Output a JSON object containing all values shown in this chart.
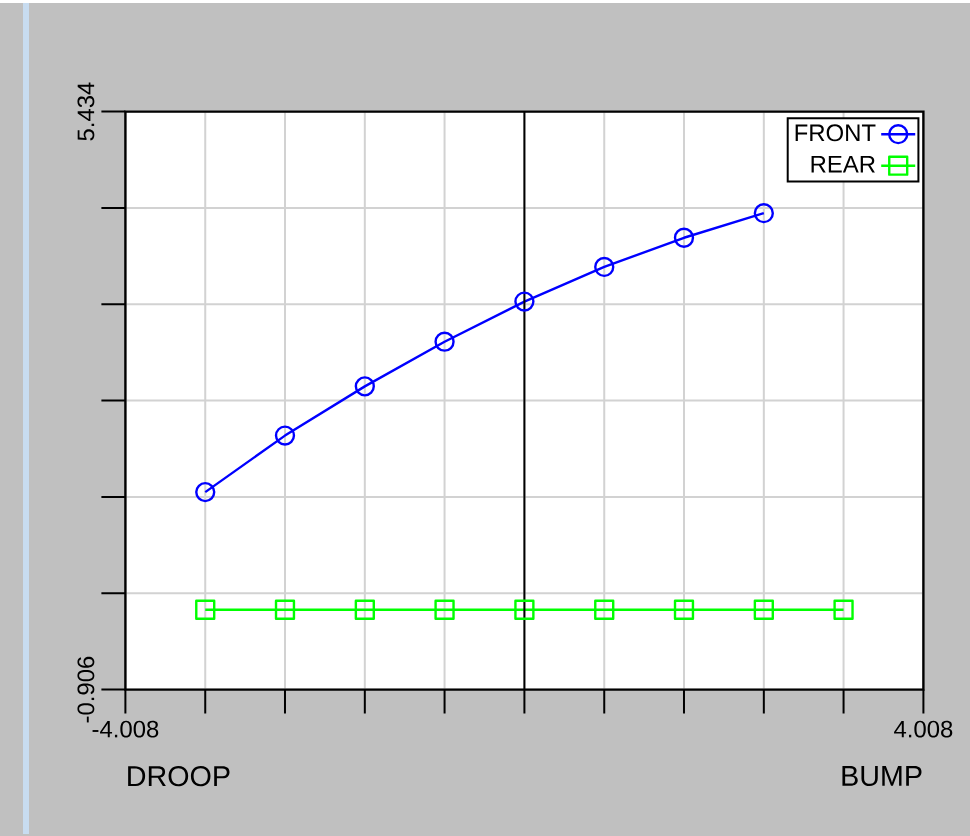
{
  "chart_data": {
    "type": "line",
    "annotations": [
      "DROOP",
      "BUMP"
    ],
    "x": [
      -3.206,
      -2.405,
      -1.603,
      -0.802,
      0,
      0.802,
      1.603,
      2.405,
      3.206
    ],
    "series": [
      {
        "name": "FRONT",
        "color": "#0000ff",
        "marker": "circle",
        "values": [
          1.26,
          1.88,
          2.42,
          2.91,
          3.35,
          3.73,
          4.05,
          4.32,
          null
        ]
      },
      {
        "name": "REAR",
        "color": "#00ff00",
        "marker": "square",
        "values": [
          -0.03,
          -0.03,
          -0.03,
          -0.03,
          -0.03,
          -0.03,
          -0.03,
          -0.03,
          -0.03
        ]
      }
    ],
    "xlim": [
      -4.008,
      4.008
    ],
    "ylim": [
      -0.906,
      5.434
    ],
    "xticks": [
      -4.008,
      {
        "value": -3.206,
        "label": null
      },
      {
        "value": -2.405,
        "label": null
      },
      {
        "value": -1.603,
        "label": null
      },
      {
        "value": -0.802,
        "label": null
      },
      {
        "value": 0,
        "label": null
      },
      {
        "value": 0.802,
        "label": null
      },
      {
        "value": 1.603,
        "label": null
      },
      {
        "value": 2.405,
        "label": null
      },
      {
        "value": 3.206,
        "label": null
      },
      4.008
    ],
    "yticks": [
      -0.906,
      {
        "value": 0.151,
        "label": null
      },
      {
        "value": 1.207,
        "label": null
      },
      {
        "value": 2.264,
        "label": null
      },
      {
        "value": 3.321,
        "label": null
      },
      {
        "value": 4.377,
        "label": null
      },
      5.434
    ],
    "ref_lines": [
      {
        "axis": "x",
        "value": 0,
        "color": "#000000"
      }
    ],
    "grid": true,
    "legend": "top right"
  }
}
